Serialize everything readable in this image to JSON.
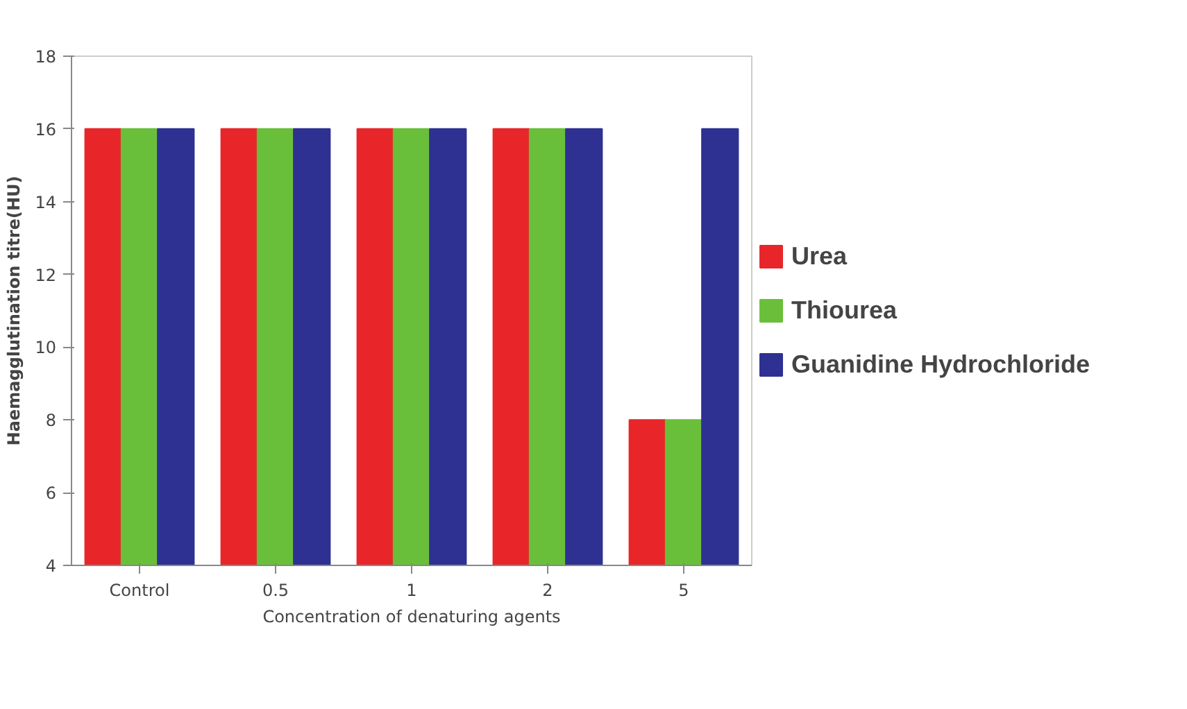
{
  "chart_data": {
    "type": "bar",
    "xlabel": "Concentration of denaturing agents",
    "ylabel": "Haemagglutination titre(HU)",
    "categories": [
      "Control",
      "0.5",
      "1",
      "2",
      "5"
    ],
    "series": [
      {
        "name": "Urea",
        "color": "#e8262a",
        "values": [
          16,
          16,
          16,
          16,
          8
        ]
      },
      {
        "name": "Thiourea",
        "color": "#6abf3a",
        "values": [
          16,
          16,
          16,
          16,
          8
        ]
      },
      {
        "name": "Guanidine Hydrochloride",
        "color": "#2e3192",
        "values": [
          16,
          16,
          16,
          16,
          16
        ]
      }
    ],
    "ylim": [
      4,
      18
    ],
    "yticks": [
      4,
      6,
      8,
      10,
      12,
      14,
      16,
      18
    ],
    "grid": false,
    "legend": "right"
  }
}
